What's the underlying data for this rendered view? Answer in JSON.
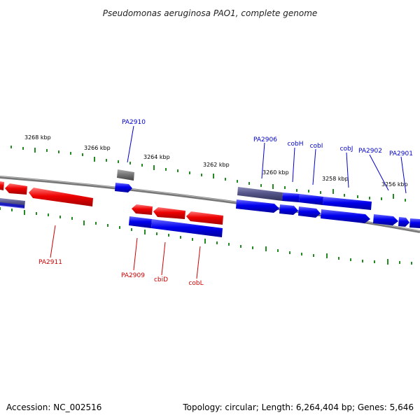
{
  "title": "Pseudomonas aeruginosa PAO1, complete genome",
  "footer": {
    "accession": "Accession: NC_002516",
    "topology": "Topology: circular; Length: 6,264,404 bp; Genes: 5,646"
  },
  "colors": {
    "forward": "#0000ee",
    "reverse": "#ee0000",
    "forward_label": "#0000cc",
    "reverse_label": "#cc0000",
    "tick": "#228b22",
    "backbone": "#777777"
  },
  "scale_labels": [
    "3268 kbp",
    "3266 kbp",
    "3264 kbp",
    "3262 kbp",
    "3260 kbp",
    "3258 kbp",
    "3256 kbp"
  ],
  "gene_labels": {
    "forward": [
      "PA2910",
      "PA2906",
      "cobH",
      "cobI",
      "cobJ",
      "PA2902",
      "PA2901"
    ],
    "reverse": [
      "PA2911",
      "PA2909",
      "cbiD",
      "cobL"
    ]
  }
}
